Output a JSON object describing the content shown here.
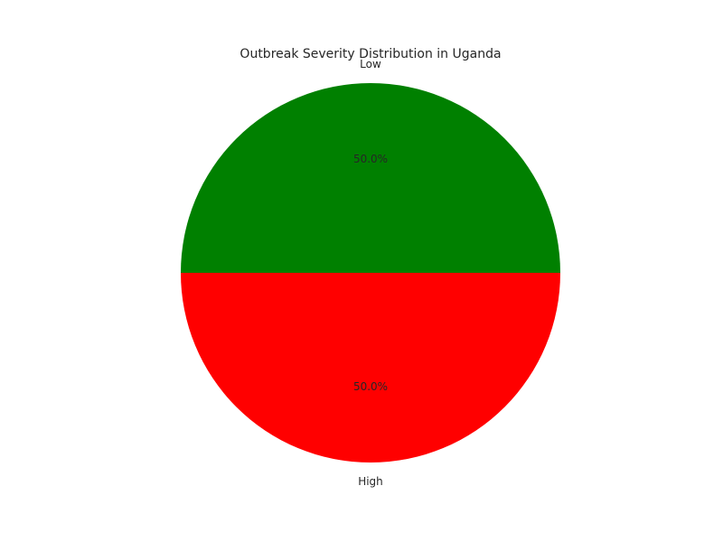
{
  "chart_data": {
    "type": "pie",
    "title": "Outbreak Severity Distribution in Uganda",
    "slices": [
      {
        "label": "Low",
        "value": 50.0,
        "percent_label": "50.0%",
        "color": "#008000"
      },
      {
        "label": "High",
        "value": 50.0,
        "percent_label": "50.0%",
        "color": "#ff0000"
      }
    ],
    "start_angle_deg": 0,
    "direction": "counterclockwise",
    "legend": "none"
  }
}
